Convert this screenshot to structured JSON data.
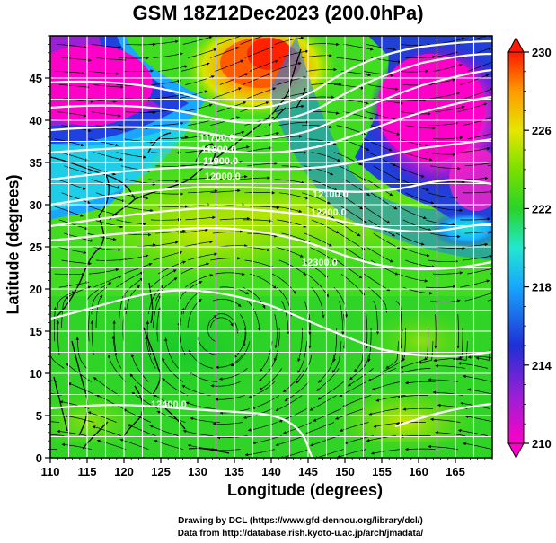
{
  "title": "GSM 18Z12Dec2023 (200.0hPa)",
  "xlabel": "Longitude (degrees)",
  "ylabel": "Latitude  (degrees)",
  "credits": [
    "Drawing by DCL (https://www.gfd-dennou.org/library/dcl/)",
    "Data from http://database.rish.kyoto-u.ac.jp/arch/jmadata/"
  ],
  "x_ticks": [
    "110",
    "115",
    "120",
    "125",
    "130",
    "135",
    "140",
    "145",
    "150",
    "155",
    "160",
    "165"
  ],
  "y_ticks": [
    "0",
    "5",
    "10",
    "15",
    "20",
    "25",
    "30",
    "35",
    "40",
    "45"
  ],
  "colorbar_ticks": [
    "210",
    "214",
    "218",
    "222",
    "226",
    "230"
  ],
  "contour_labels": [
    "11700.0",
    "11800.0",
    "11900.0",
    "12000.0",
    "12100.0",
    "12200.0",
    "12300.0",
    "12400.0"
  ],
  "chart_data": {
    "type": "heatmap",
    "title": "GSM 18Z12Dec2023 (200.0hPa)",
    "xlabel": "Longitude (degrees)",
    "ylabel": "Latitude  (degrees)",
    "xlim": [
      110,
      170
    ],
    "ylim": [
      0,
      50
    ],
    "colorbar": {
      "min": 210,
      "max": 230,
      "ticks": [
        210,
        214,
        218,
        222,
        226,
        230
      ]
    },
    "colormap": [
      "#ff00c8",
      "#7b1fd6",
      "#1f2fd6",
      "#18a6ff",
      "#22e8d0",
      "#28d428",
      "#7ae000",
      "#e6e600",
      "#ff9a00",
      "#ff1a00"
    ],
    "overlays": [
      "temperature shading",
      "geopotential height contours",
      "wind streamlines",
      "coastlines",
      "lat/lon grid"
    ]
  }
}
